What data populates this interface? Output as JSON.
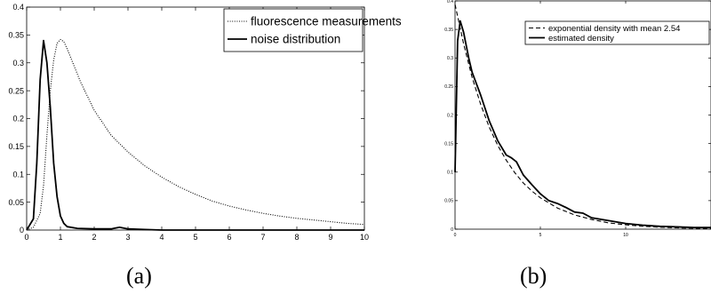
{
  "chart_data": [
    {
      "type": "line",
      "title": "",
      "xlabel": "",
      "ylabel": "",
      "xlim": [
        0,
        10
      ],
      "ylim": [
        0,
        0.4
      ],
      "xticks": [
        0,
        1,
        2,
        3,
        4,
        5,
        6,
        7,
        8,
        9,
        10
      ],
      "yticks": [
        0,
        0.05,
        0.1,
        0.15,
        0.2,
        0.25,
        0.3,
        0.35,
        0.4
      ],
      "xtick_labels": [
        "0",
        "1",
        "2",
        "3",
        "4",
        "5",
        "6",
        "7",
        "8",
        "9",
        "10"
      ],
      "ytick_labels": [
        "0",
        "0.05",
        "0.1",
        "0.15",
        "0.2",
        "0.25",
        "0.3",
        "0.35",
        "0.4"
      ],
      "grid": false,
      "legend_position": "top-right",
      "series": [
        {
          "name": "fluorescence measurements",
          "style": "dotted",
          "color": "#000000",
          "x": [
            0,
            0.2,
            0.4,
            0.5,
            0.6,
            0.7,
            0.8,
            0.9,
            1.0,
            1.1,
            1.2,
            1.4,
            1.6,
            1.8,
            2.0,
            2.5,
            3.0,
            3.5,
            4.0,
            4.5,
            5.0,
            5.5,
            6.0,
            6.5,
            7.0,
            7.5,
            8.0,
            8.5,
            9.0,
            9.5,
            10.0
          ],
          "y": [
            0,
            0.005,
            0.03,
            0.08,
            0.17,
            0.25,
            0.305,
            0.335,
            0.342,
            0.338,
            0.325,
            0.295,
            0.265,
            0.24,
            0.215,
            0.17,
            0.14,
            0.115,
            0.095,
            0.078,
            0.064,
            0.052,
            0.043,
            0.036,
            0.03,
            0.025,
            0.021,
            0.018,
            0.015,
            0.012,
            0.01
          ]
        },
        {
          "name": "noise distribution",
          "style": "solid",
          "color": "#000000",
          "x": [
            0,
            0.2,
            0.3,
            0.4,
            0.5,
            0.6,
            0.7,
            0.8,
            0.9,
            1.0,
            1.1,
            1.2,
            1.5,
            2.0,
            2.5,
            2.75,
            3.0,
            3.5,
            4.0,
            10.0
          ],
          "y": [
            0,
            0.02,
            0.12,
            0.27,
            0.34,
            0.3,
            0.22,
            0.12,
            0.06,
            0.025,
            0.012,
            0.006,
            0.003,
            0.002,
            0.002,
            0.005,
            0.002,
            0.001,
            0,
            0
          ]
        }
      ]
    },
    {
      "type": "line",
      "title": "",
      "xlabel": "",
      "ylabel": "",
      "xlim": [
        0,
        15
      ],
      "ylim": [
        0,
        0.4
      ],
      "xticks": [
        0,
        5,
        10
      ],
      "yticks": [
        0,
        0.05,
        0.1,
        0.15,
        0.2,
        0.25,
        0.3,
        0.35,
        0.4
      ],
      "xtick_labels": [
        "0",
        "5",
        "10"
      ],
      "ytick_labels": [
        "0",
        "0.05",
        "0.1",
        "0.15",
        "0.2",
        "0.25",
        "0.3",
        "0.35",
        "0.4"
      ],
      "grid": false,
      "legend_position": "top-right",
      "series": [
        {
          "name": "exponential density with mean 2.54",
          "style": "dashed",
          "color": "#000000",
          "x": [
            0,
            0.5,
            1,
            1.5,
            2,
            2.5,
            3,
            3.5,
            4,
            4.5,
            5,
            6,
            7,
            8,
            9,
            10,
            11,
            12,
            13,
            14,
            15
          ],
          "y": [
            0.394,
            0.325,
            0.266,
            0.219,
            0.179,
            0.147,
            0.121,
            0.099,
            0.081,
            0.067,
            0.055,
            0.037,
            0.025,
            0.017,
            0.011,
            0.0077,
            0.0051,
            0.0035,
            0.0023,
            0.0016,
            0.0011
          ]
        },
        {
          "name": "estimated density",
          "style": "solid",
          "color": "#000000",
          "x": [
            0,
            0.15,
            0.3,
            0.5,
            0.8,
            1.0,
            1.5,
            2.0,
            2.5,
            3.0,
            3.3,
            3.6,
            4.0,
            4.5,
            5.0,
            5.5,
            6.0,
            6.5,
            7.0,
            7.5,
            8.0,
            9.0,
            10.0,
            11.0,
            12.0,
            13.0,
            14.0,
            15.0
          ],
          "y": [
            0.1,
            0.33,
            0.365,
            0.345,
            0.3,
            0.275,
            0.235,
            0.19,
            0.155,
            0.13,
            0.125,
            0.118,
            0.095,
            0.078,
            0.062,
            0.05,
            0.045,
            0.038,
            0.03,
            0.028,
            0.02,
            0.015,
            0.01,
            0.007,
            0.005,
            0.004,
            0.003,
            0.003
          ]
        }
      ]
    }
  ],
  "captions": [
    "(a)",
    "(b)"
  ]
}
